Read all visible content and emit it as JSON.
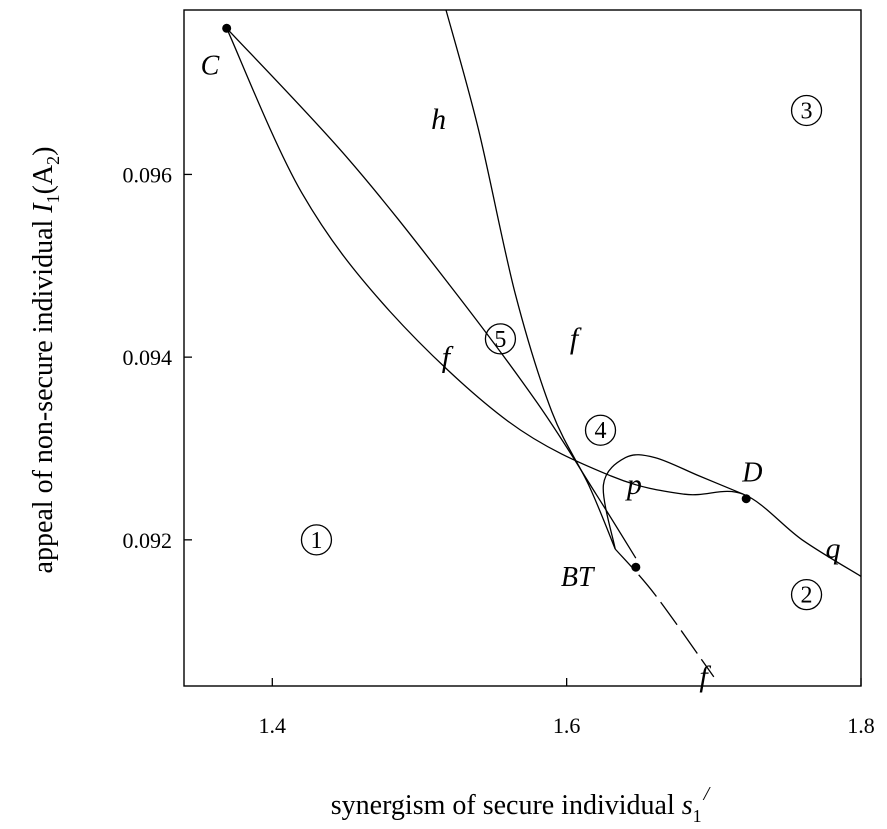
{
  "chart_data": {
    "type": "line",
    "title": "",
    "xlabel": "synergism of secure individual",
    "xlabel_symbol": "s",
    "xlabel_sub": "1",
    "xlabel_sup": "/",
    "ylabel": "appeal of non-secure individual",
    "ylabel_symbol": "I",
    "ylabel_sub": "1",
    "ylabel_paren": "(A",
    "ylabel_paren_sub": "2",
    "ylabel_close": ")",
    "xlim": [
      1.34,
      1.8
    ],
    "ylim": [
      0.0904,
      0.0978
    ],
    "xticks": [
      1.4,
      1.6,
      1.8
    ],
    "xtick_labels": [
      "1.4",
      "1.6",
      "1.8"
    ],
    "yticks": [
      0.092,
      0.094,
      0.096
    ],
    "ytick_labels": [
      "0.092",
      "0.094",
      "0.096"
    ],
    "grid": false,
    "series": [
      {
        "name": "f",
        "style": "solid",
        "points": [
          [
            1.369,
            0.0976
          ],
          [
            1.42,
            0.0958
          ],
          [
            1.48,
            0.0945
          ],
          [
            1.56,
            0.0933
          ],
          [
            1.63,
            0.0927
          ],
          [
            1.68,
            0.0925
          ],
          [
            1.72,
            0.0925
          ],
          [
            1.76,
            0.092
          ],
          [
            1.8,
            0.0916
          ]
        ]
      },
      {
        "name": "f",
        "style": "solid",
        "points": [
          [
            1.369,
            0.0976
          ],
          [
            1.45,
            0.0962
          ],
          [
            1.52,
            0.0948
          ],
          [
            1.58,
            0.0935
          ],
          [
            1.62,
            0.0925
          ],
          [
            1.647,
            0.0918
          ]
        ]
      },
      {
        "name": "f",
        "style": "dashed",
        "points": [
          [
            1.633,
            0.0919
          ],
          [
            1.66,
            0.0914
          ],
          [
            1.7,
            0.0905
          ]
        ]
      },
      {
        "name": "h",
        "style": "solid",
        "points": [
          [
            1.518,
            0.0978
          ],
          [
            1.54,
            0.0965
          ],
          [
            1.565,
            0.0947
          ],
          [
            1.59,
            0.0934
          ],
          [
            1.615,
            0.0926
          ],
          [
            1.633,
            0.0919
          ]
        ]
      },
      {
        "name": "p",
        "style": "solid",
        "points": [
          [
            1.633,
            0.0919
          ],
          [
            1.625,
            0.0926
          ],
          [
            1.64,
            0.0929
          ],
          [
            1.66,
            0.0929
          ],
          [
            1.69,
            0.0927
          ],
          [
            1.72,
            0.0925
          ]
        ]
      }
    ],
    "points": [
      {
        "label": "C",
        "x": 1.369,
        "y": 0.0976
      },
      {
        "label": "D",
        "x": 1.722,
        "y": 0.09245
      },
      {
        "label": "BT",
        "x": 1.647,
        "y": 0.0917
      }
    ],
    "curve_labels": [
      {
        "text": "h",
        "x": 1.513,
        "y": 0.0965
      },
      {
        "text": "f",
        "x": 1.518,
        "y": 0.0939
      },
      {
        "text": "f",
        "x": 1.605,
        "y": 0.0941
      },
      {
        "text": "p",
        "x": 1.646,
        "y": 0.0925
      },
      {
        "text": "q",
        "x": 1.781,
        "y": 0.0918
      },
      {
        "text": "f",
        "x": 1.693,
        "y": 0.0904
      }
    ],
    "regions": [
      {
        "text": "1",
        "x": 1.43,
        "y": 0.092
      },
      {
        "text": "2",
        "x": 1.763,
        "y": 0.0914
      },
      {
        "text": "3",
        "x": 1.763,
        "y": 0.0967
      },
      {
        "text": "4",
        "x": 1.623,
        "y": 0.0932
      },
      {
        "text": "5",
        "x": 1.555,
        "y": 0.0942
      }
    ]
  }
}
